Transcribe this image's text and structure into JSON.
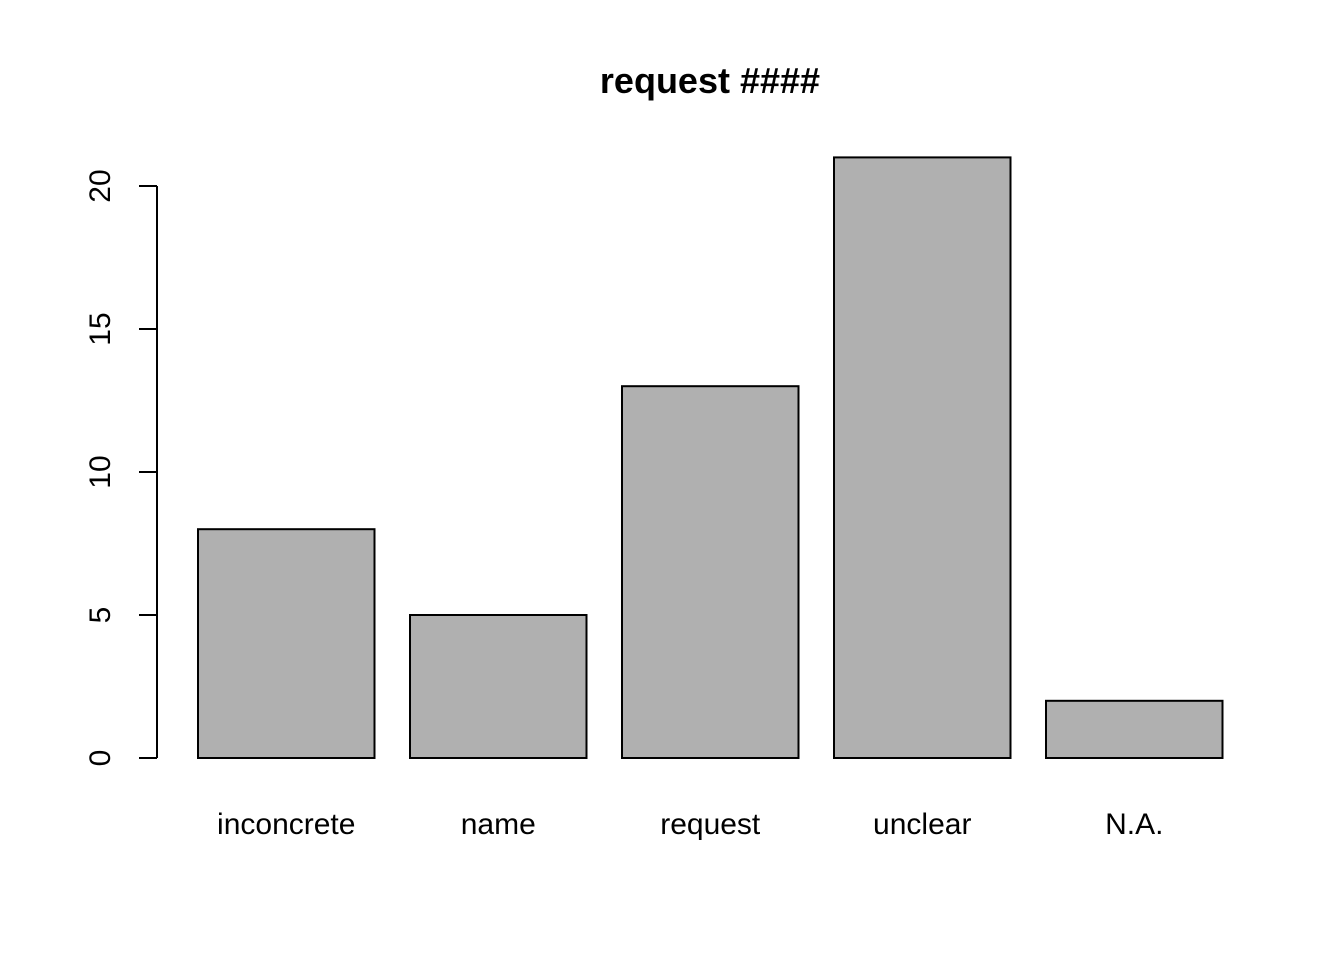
{
  "chart_data": {
    "type": "bar",
    "title": "request ####",
    "xlabel": "",
    "ylabel": "",
    "categories": [
      "inconcrete",
      "name",
      "request",
      "unclear",
      "N.A."
    ],
    "values": [
      8,
      5,
      13,
      21,
      2
    ],
    "ylim": [
      0,
      21
    ],
    "yticks": [
      0,
      5,
      10,
      15,
      20
    ],
    "ytick_labels": [
      "0",
      "5",
      "10",
      "15",
      "20"
    ],
    "bar_color": "#b0b0b0",
    "border_color": "#000000",
    "grid": false,
    "legend": "none"
  }
}
